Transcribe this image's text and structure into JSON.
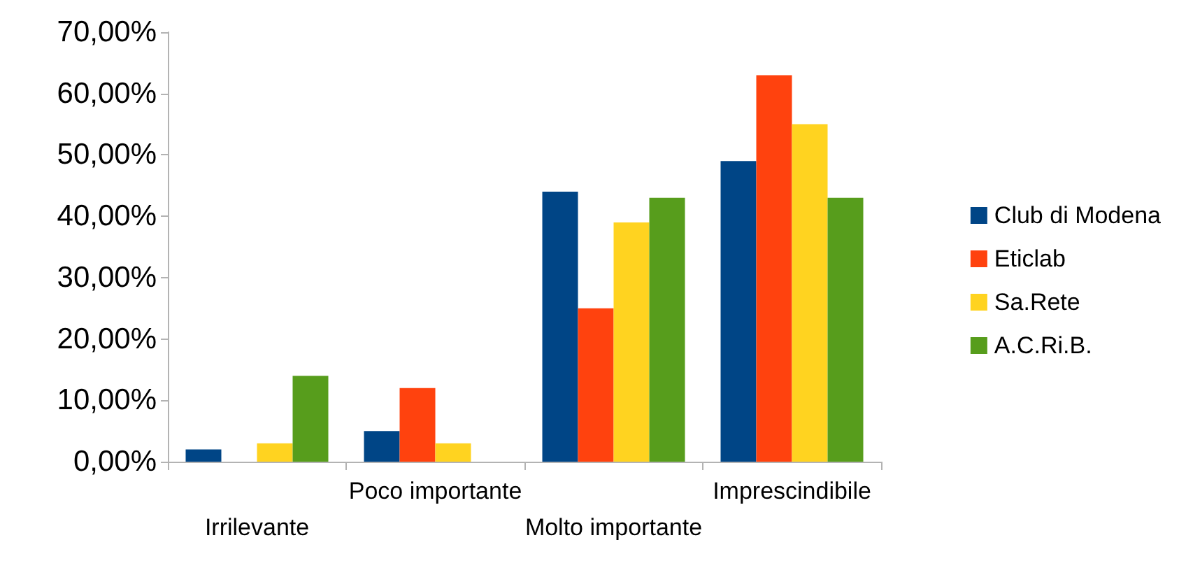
{
  "chart_data": {
    "type": "bar",
    "categories": [
      "Irrilevante",
      "Poco importante",
      "Molto importante",
      "Imprescindibile"
    ],
    "series": [
      {
        "name": "Club di Modena",
        "color": "#004586",
        "values": [
          2,
          5,
          44,
          49
        ]
      },
      {
        "name": "Eticlab",
        "color": "#ff420e",
        "values": [
          0,
          12,
          25,
          63
        ]
      },
      {
        "name": "Sa.Rete",
        "color": "#ffd320",
        "values": [
          3,
          3,
          39,
          55
        ]
      },
      {
        "name": "A.C.Ri.B.",
        "color": "#579d1c",
        "values": [
          14,
          0,
          43,
          43
        ]
      }
    ],
    "ylim": [
      0,
      70
    ],
    "yticks": [
      {
        "value": 0,
        "label": "0,00%"
      },
      {
        "value": 10,
        "label": "10,00%"
      },
      {
        "value": 20,
        "label": "20,00%"
      },
      {
        "value": 30,
        "label": "30,00%"
      },
      {
        "value": 40,
        "label": "40,00%"
      },
      {
        "value": 50,
        "label": "50,00%"
      },
      {
        "value": 60,
        "label": "60,00%"
      },
      {
        "value": 70,
        "label": "70,00%"
      }
    ],
    "grid": false,
    "legend": "right"
  }
}
